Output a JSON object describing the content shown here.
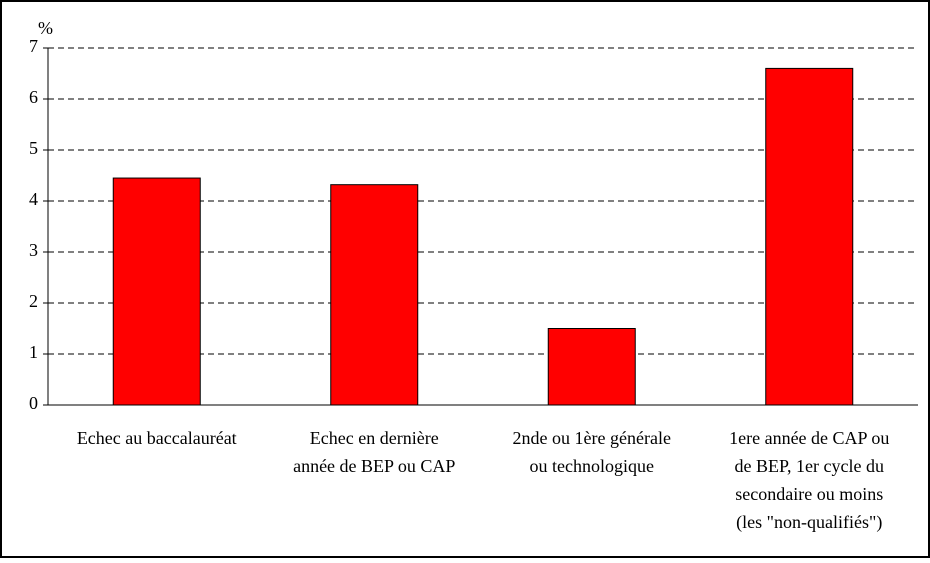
{
  "chart_data": {
    "type": "bar",
    "y_label": "%",
    "categories": [
      [
        "Echec  au baccalauréat"
      ],
      [
        "Echec en dernière",
        "année de BEP ou CAP"
      ],
      [
        "2nde ou 1ère générale",
        "ou technologique"
      ],
      [
        "1ere année de CAP ou",
        "de BEP, 1er cycle du",
        "secondaire ou moins",
        "(les \"non-qualifiés\")"
      ]
    ],
    "values": [
      4.45,
      4.32,
      1.5,
      6.6
    ],
    "color": "#ff0000",
    "ylim": [
      0,
      7
    ],
    "yticks": [
      0,
      1,
      2,
      3,
      4,
      5,
      6,
      7
    ],
    "grid": true
  }
}
